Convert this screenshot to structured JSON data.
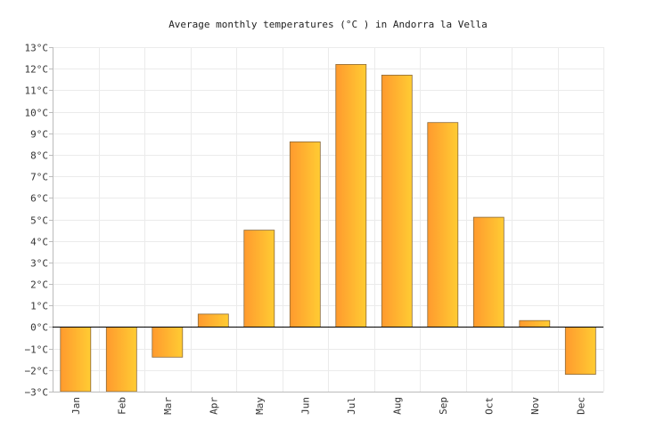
{
  "chart_data": {
    "type": "bar",
    "title": "Average monthly temperatures (°C ) in Andorra la Vella",
    "categories": [
      "Jan",
      "Feb",
      "Mar",
      "Apr",
      "May",
      "Jun",
      "Jul",
      "Aug",
      "Sep",
      "Oct",
      "Nov",
      "Dec"
    ],
    "values": [
      -3.0,
      -3.0,
      -1.4,
      0.6,
      4.5,
      8.6,
      12.2,
      11.7,
      9.5,
      5.1,
      0.3,
      -2.2
    ],
    "ylim": [
      -3,
      13
    ],
    "yticks": [
      -3,
      -2,
      -1,
      0,
      1,
      2,
      3,
      4,
      5,
      6,
      7,
      8,
      9,
      10,
      11,
      12,
      13
    ],
    "ytick_suffix": "°C",
    "xlabel": "",
    "ylabel": "",
    "grid": true,
    "legend": "none",
    "colors": {
      "bar_left": "#ff9a2e",
      "bar_right": "#ffcc33",
      "bar_stroke": "#8a6a3a"
    }
  }
}
